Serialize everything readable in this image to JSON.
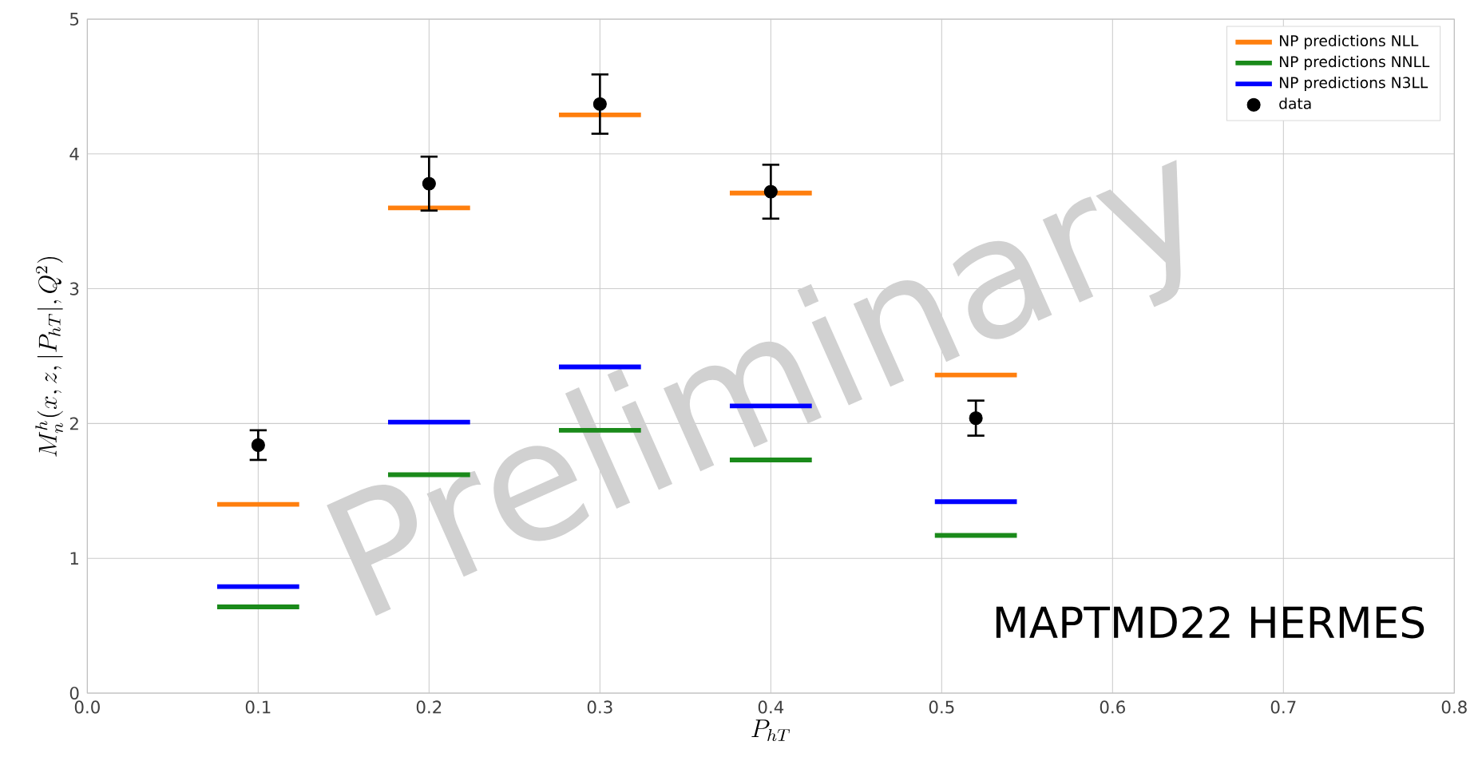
{
  "chart_data": {
    "type": "line",
    "xlabel": "P_{hT}",
    "ylabel": "M_n^h(x, z, |P_{hT}|, Q^2)",
    "xlim": [
      0.0,
      0.8
    ],
    "xticks": [
      {
        "value": 0,
        "label": "0.0"
      },
      0.1,
      0.2,
      0.3,
      0.4,
      0.5,
      0.6,
      0.7,
      0.8
    ],
    "ylim": [
      0,
      5
    ],
    "yticks": [
      0,
      1,
      2,
      3,
      4,
      5
    ],
    "grid": true,
    "legend": "top right",
    "line_style": "solid",
    "marker": "none",
    "series": [
      {
        "name": "NP predictions NLL",
        "color": "#ff7f0e",
        "x": [
          0.076,
          0.124,
          null,
          0.176,
          0.224,
          null,
          0.276,
          0.324,
          null,
          0.376,
          0.424,
          null,
          0.496,
          0.544
        ],
        "values": [
          1.4,
          1.4,
          null,
          3.6,
          3.6,
          null,
          4.29,
          4.29,
          null,
          3.71,
          3.71,
          null,
          2.36,
          2.36
        ]
      },
      {
        "name": "NP predictions NNLL",
        "color": "#1a8a1a",
        "x": [
          0.076,
          0.124,
          null,
          0.176,
          0.224,
          null,
          0.276,
          0.324,
          null,
          0.376,
          0.424,
          null,
          0.496,
          0.544
        ],
        "values": [
          0.64,
          0.64,
          null,
          1.62,
          1.62,
          null,
          1.95,
          1.95,
          null,
          1.73,
          1.73,
          null,
          1.17,
          1.17
        ]
      },
      {
        "name": "NP predictions N3LL",
        "color": "#0000ff",
        "x": [
          0.076,
          0.124,
          null,
          0.176,
          0.224,
          null,
          0.276,
          0.324,
          null,
          0.376,
          0.424,
          null,
          0.496,
          0.544
        ],
        "values": [
          0.79,
          0.79,
          null,
          2.01,
          2.01,
          null,
          2.42,
          2.42,
          null,
          2.13,
          2.13,
          null,
          1.42,
          1.42
        ]
      },
      {
        "name": "data",
        "type": "scatter",
        "marker": "circle",
        "color": "#000000",
        "x": [
          0.1,
          0.2,
          0.3,
          0.4,
          0.52
        ],
        "values": [
          1.84,
          3.78,
          4.37,
          3.72,
          2.04
        ],
        "errors": [
          0.11,
          0.2,
          0.22,
          0.2,
          0.13
        ]
      }
    ],
    "annotations": [
      "MAPTMD22 HERMES",
      "Preliminary"
    ]
  }
}
